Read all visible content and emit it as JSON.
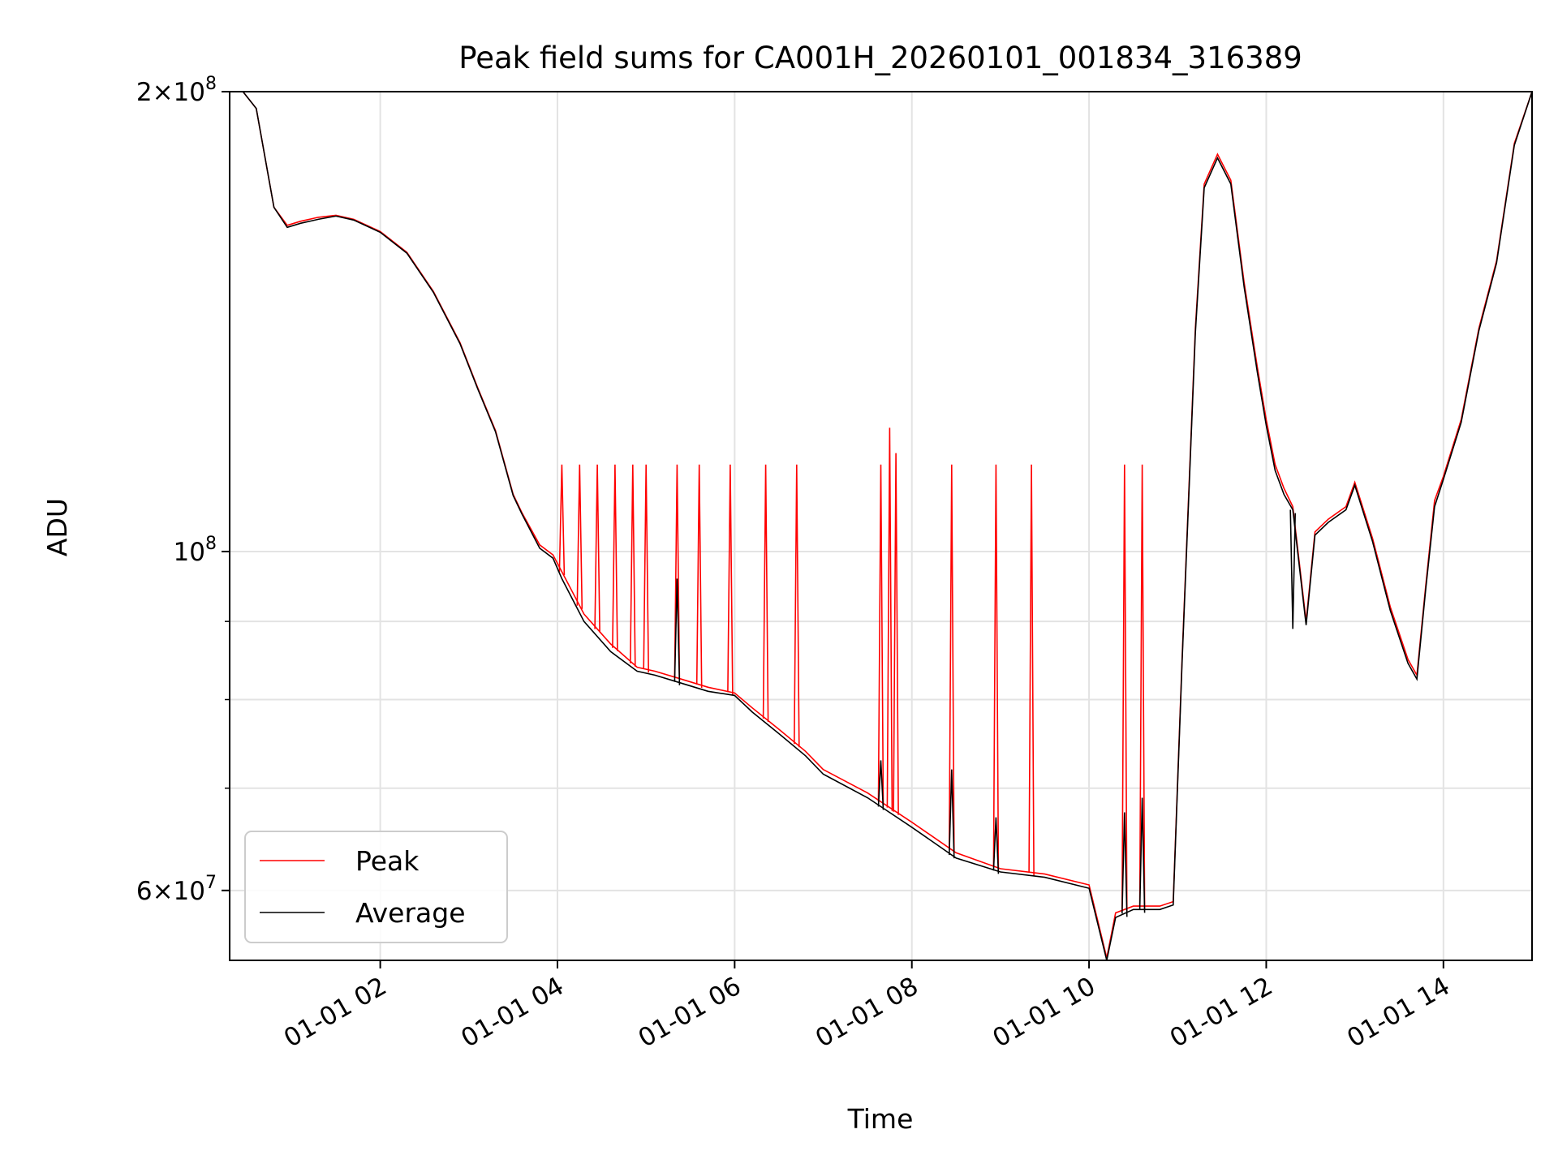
{
  "chart_data": {
    "type": "line",
    "title": "Peak field sums for CA001H_20260101_001834_316389",
    "xlabel": "Time",
    "ylabel": "ADU",
    "yscale": "log",
    "ylim": [
      54000000,
      200000000
    ],
    "xlim_hours": [
      0.3,
      15.0
    ],
    "grid": true,
    "legend_position": "lower-left",
    "x_ticks": [
      {
        "value": 2,
        "label": "01-01 02"
      },
      {
        "value": 4,
        "label": "01-01 04"
      },
      {
        "value": 6,
        "label": "01-01 06"
      },
      {
        "value": 8,
        "label": "01-01 08"
      },
      {
        "value": 10,
        "label": "01-01 10"
      },
      {
        "value": 12,
        "label": "01-01 12"
      },
      {
        "value": 14,
        "label": "01-01 14"
      }
    ],
    "y_major_ticks": [
      {
        "value": 60000000,
        "mantissa": "6",
        "exponent": "7"
      },
      {
        "value": 100000000,
        "mantissa": "",
        "exponent": "8"
      },
      {
        "value": 200000000,
        "mantissa": "2",
        "exponent": "8"
      }
    ],
    "y_minor_ticks": [
      70000000,
      80000000,
      90000000
    ],
    "series": [
      {
        "name": "Peak",
        "color": "#ff0000",
        "x_hours": [
          0.45,
          0.6,
          0.8,
          0.95,
          1.1,
          1.3,
          1.5,
          1.7,
          2.0,
          2.3,
          2.6,
          2.9,
          3.1,
          3.3,
          3.5,
          3.6,
          3.8,
          3.95,
          4.05,
          4.3,
          4.6,
          4.9,
          5.1,
          5.4,
          5.7,
          6.0,
          6.2,
          6.5,
          6.8,
          7.0,
          7.5,
          8.0,
          8.5,
          9.0,
          9.5,
          10.0,
          10.2,
          10.3,
          10.5,
          10.8,
          10.95,
          11.05,
          11.2,
          11.3,
          11.45,
          11.6,
          11.75,
          11.9,
          12.0,
          12.1,
          12.2,
          12.3,
          12.45,
          12.55,
          12.7,
          12.9,
          13.0,
          13.2,
          13.4,
          13.6,
          13.7,
          13.8,
          13.9,
          14.0,
          14.2,
          14.4,
          14.6,
          14.8,
          15.0
        ],
        "values_adu": [
          200000000,
          195000000,
          168000000,
          163500000,
          164500000,
          165500000,
          166000000,
          165000000,
          162000000,
          157000000,
          148000000,
          137000000,
          128000000,
          120000000,
          109000000,
          106000000,
          101000000,
          99500000,
          97000000,
          91000000,
          87000000,
          84000000,
          83500000,
          82500000,
          81500000,
          80800000,
          79000000,
          76500000,
          74000000,
          72000000,
          69500000,
          66500000,
          63500000,
          62000000,
          61500000,
          60500000,
          54200000,
          58000000,
          58600000,
          58600000,
          59000000,
          85000000,
          140000000,
          174000000,
          182000000,
          175000000,
          150000000,
          132000000,
          122000000,
          114000000,
          110000000,
          107000000,
          90000000,
          103000000,
          105000000,
          107000000,
          111000000,
          102000000,
          92000000,
          85000000,
          83000000,
          95000000,
          108000000,
          112000000,
          122000000,
          140000000,
          155000000,
          185000000,
          200000000
        ],
        "spikes": [
          {
            "x_hours": 4.05,
            "value_adu": 114000000
          },
          {
            "x_hours": 4.25,
            "value_adu": 114000000
          },
          {
            "x_hours": 4.45,
            "value_adu": 114000000
          },
          {
            "x_hours": 4.65,
            "value_adu": 114000000
          },
          {
            "x_hours": 4.85,
            "value_adu": 114000000
          },
          {
            "x_hours": 5.0,
            "value_adu": 114000000
          },
          {
            "x_hours": 5.35,
            "value_adu": 114000000
          },
          {
            "x_hours": 5.6,
            "value_adu": 114000000
          },
          {
            "x_hours": 5.95,
            "value_adu": 114000000
          },
          {
            "x_hours": 6.35,
            "value_adu": 114000000
          },
          {
            "x_hours": 6.7,
            "value_adu": 114000000
          },
          {
            "x_hours": 7.65,
            "value_adu": 114000000
          },
          {
            "x_hours": 7.75,
            "value_adu": 120500000
          },
          {
            "x_hours": 7.82,
            "value_adu": 116000000
          },
          {
            "x_hours": 8.45,
            "value_adu": 114000000
          },
          {
            "x_hours": 8.95,
            "value_adu": 114000000
          },
          {
            "x_hours": 9.35,
            "value_adu": 114000000
          },
          {
            "x_hours": 10.4,
            "value_adu": 114000000
          },
          {
            "x_hours": 10.6,
            "value_adu": 114000000
          }
        ]
      },
      {
        "name": "Average",
        "color": "#000000",
        "x_hours": [
          0.45,
          0.6,
          0.8,
          0.95,
          1.1,
          1.3,
          1.5,
          1.7,
          2.0,
          2.3,
          2.6,
          2.9,
          3.1,
          3.3,
          3.5,
          3.6,
          3.8,
          3.95,
          4.05,
          4.3,
          4.6,
          4.9,
          5.1,
          5.4,
          5.7,
          6.0,
          6.2,
          6.5,
          6.8,
          7.0,
          7.5,
          8.0,
          8.5,
          9.0,
          9.5,
          10.0,
          10.2,
          10.3,
          10.5,
          10.8,
          10.95,
          11.05,
          11.2,
          11.3,
          11.45,
          11.6,
          11.75,
          11.9,
          12.0,
          12.1,
          12.2,
          12.3,
          12.45,
          12.55,
          12.7,
          12.9,
          13.0,
          13.2,
          13.4,
          13.6,
          13.7,
          13.8,
          13.9,
          14.0,
          14.2,
          14.4,
          14.6,
          14.8,
          15.0
        ],
        "values_adu": [
          200000000,
          195000000,
          168000000,
          163000000,
          164000000,
          165000000,
          165800000,
          164800000,
          161800000,
          156800000,
          147800000,
          136800000,
          127800000,
          119800000,
          108800000,
          105800000,
          100500000,
          99000000,
          96000000,
          90000000,
          86000000,
          83500000,
          83000000,
          82000000,
          81000000,
          80500000,
          78500000,
          76000000,
          73500000,
          71500000,
          69000000,
          66000000,
          63000000,
          61700000,
          61200000,
          60200000,
          54000000,
          57600000,
          58300000,
          58300000,
          58700000,
          84500000,
          139000000,
          173000000,
          181000000,
          174000000,
          149000000,
          131000000,
          121000000,
          113000000,
          109000000,
          106500000,
          89500000,
          102500000,
          104500000,
          106500000,
          110500000,
          101500000,
          91500000,
          84500000,
          82500000,
          94500000,
          107000000,
          111500000,
          121500000,
          139500000,
          154500000,
          184500000,
          200000000
        ],
        "spikes": [
          {
            "x_hours": 5.35,
            "value_adu": 96000000
          },
          {
            "x_hours": 7.65,
            "value_adu": 73000000
          },
          {
            "x_hours": 8.45,
            "value_adu": 72000000
          },
          {
            "x_hours": 8.95,
            "value_adu": 67000000
          },
          {
            "x_hours": 10.4,
            "value_adu": 67500000
          },
          {
            "x_hours": 10.6,
            "value_adu": 69000000
          },
          {
            "x_hours": 12.3,
            "value_adu": 89000000
          }
        ]
      }
    ]
  }
}
